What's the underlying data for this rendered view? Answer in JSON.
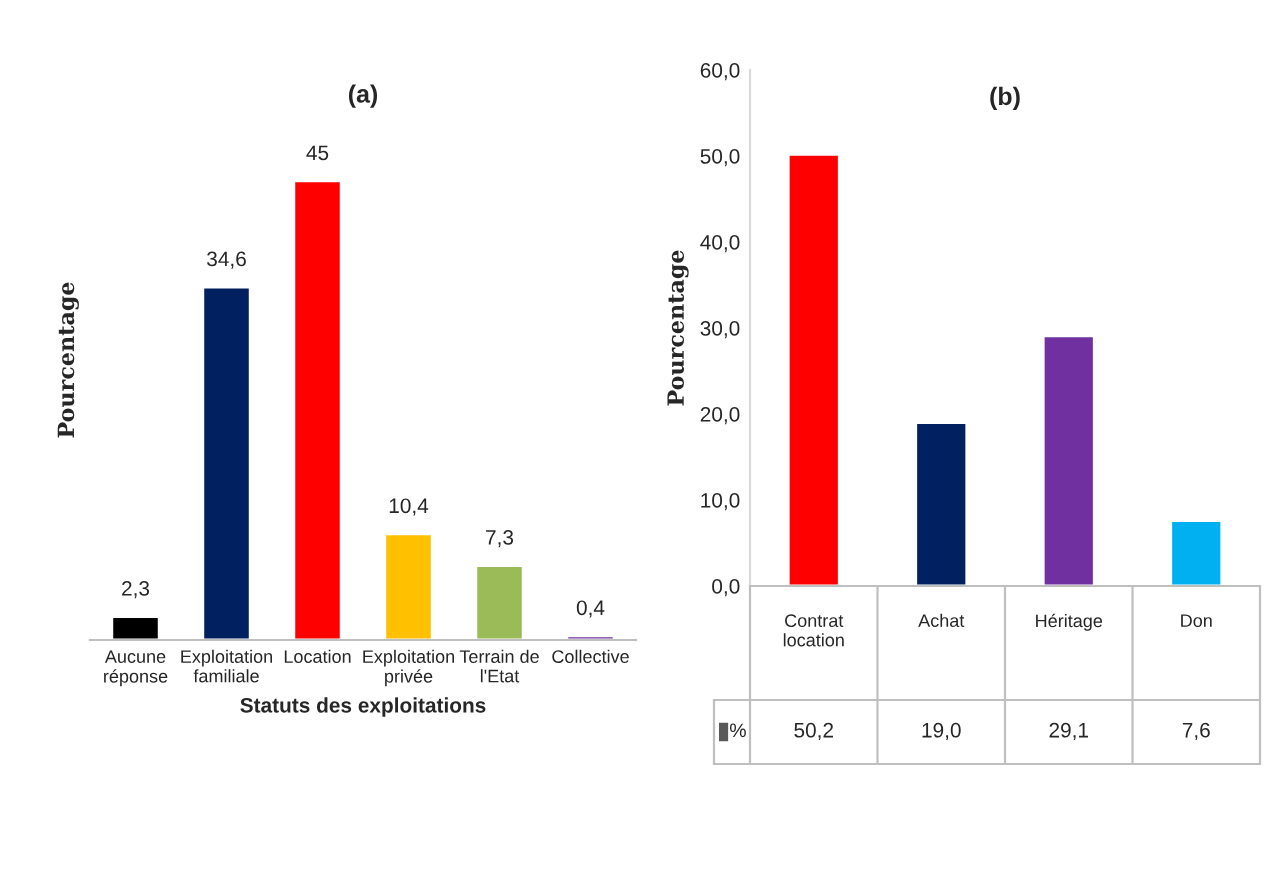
{
  "chart_data": [
    {
      "type": "bar",
      "title": "(a)",
      "xlabel": "Statuts des exploitations",
      "ylabel": "Pourcentage",
      "categories": [
        "Aucune\nréponse",
        "Exploitation\nfamiliale",
        "Location",
        "Exploitation\nprivée",
        "Terrain de\nl'Etat",
        "Collective"
      ],
      "values": [
        2.3,
        34.6,
        45,
        10.4,
        7.3,
        0.4
      ],
      "colors": [
        "#000000",
        "#002060",
        "#ff0000",
        "#ffc000",
        "#9bbb59",
        "#7030a0"
      ],
      "value_labels": [
        "2,3",
        "34,6",
        "45",
        "10,4",
        "7,3",
        "0,4"
      ],
      "tick_labels": "x",
      "grid": false,
      "legend": false
    },
    {
      "type": "bar",
      "title": "(b)",
      "ylabel": "Pourcentage",
      "categories": [
        "Contrat\nlocation",
        "Achat",
        "Héritage",
        "Don"
      ],
      "series": [
        {
          "name": "%",
          "color": "#595959",
          "colors": [
            "#ff0000",
            "#002060",
            "#7030a0",
            "#00b0f0"
          ],
          "values": [
            50.2,
            19.0,
            29.1,
            7.6
          ],
          "value_labels": [
            "50,2",
            "19,0",
            "29,1",
            "7,6"
          ]
        }
      ],
      "ylim": [
        0,
        60
      ],
      "yticks": [
        {
          "value": 0,
          "label": "0,0"
        },
        {
          "value": 10,
          "label": "10,0"
        },
        {
          "value": 20,
          "label": "20,0"
        },
        {
          "value": 30,
          "label": "30,0"
        },
        {
          "value": 40,
          "label": "40,0"
        },
        {
          "value": 50,
          "label": "50,0"
        },
        {
          "value": 60,
          "label": "60,0"
        }
      ],
      "grid": false,
      "legend": "bottom"
    }
  ]
}
